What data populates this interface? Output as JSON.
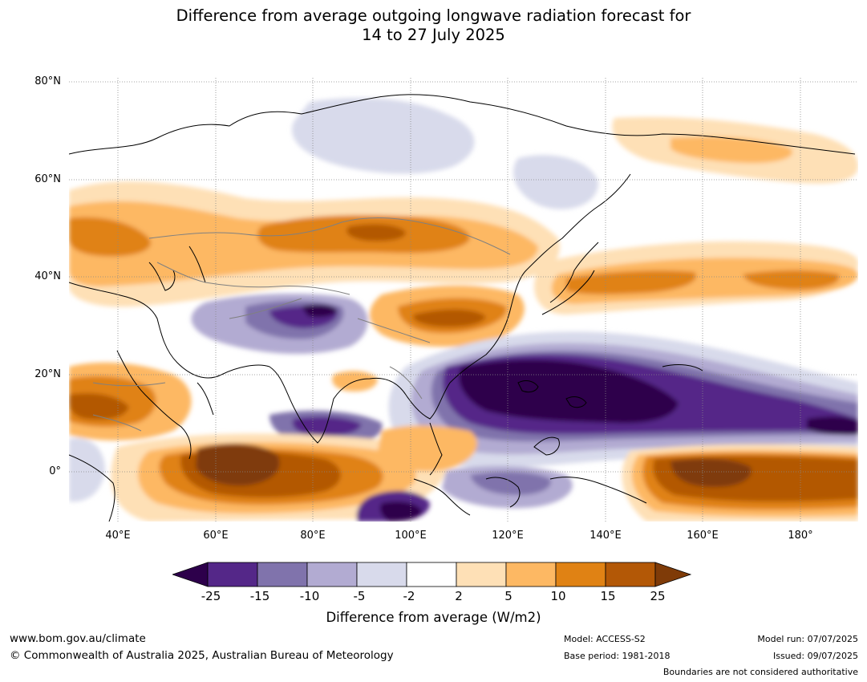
{
  "title_line1": "Difference from average outgoing longwave radiation forecast for",
  "title_line2": "14 to 27 July 2025",
  "lat_labels": [
    "80°N",
    "60°N",
    "40°N",
    "20°N",
    "0°"
  ],
  "lon_labels": [
    "40°E",
    "60°E",
    "80°E",
    "100°E",
    "120°E",
    "140°E",
    "160°E",
    "180°"
  ],
  "colorbar": {
    "label": "Difference from average (W/m2)",
    "ticks": [
      "-25",
      "-15",
      "-10",
      "-5",
      "-2",
      "2",
      "5",
      "10",
      "15",
      "25"
    ],
    "colors": [
      "#2d004b",
      "#542788",
      "#8073ac",
      "#b2abd2",
      "#d8daeb",
      "#ffffff",
      "#fee0b6",
      "#fdb863",
      "#e08214",
      "#b35806",
      "#7f3b08"
    ]
  },
  "map": {
    "lon_range": [
      30,
      192
    ],
    "lat_range": [
      -10,
      81
    ]
  },
  "footer": {
    "url": "www.bom.gov.au/climate",
    "copyright": "© Commonwealth of Australia 2025, Australian Bureau of Meteorology",
    "model": "Model: ACCESS-S2",
    "base_period": "Base period: 1981-2018",
    "model_run": "Model run: 07/07/2025",
    "issued": "Issued: 09/07/2025",
    "disclaimer": "Boundaries are not considered authoritative"
  }
}
